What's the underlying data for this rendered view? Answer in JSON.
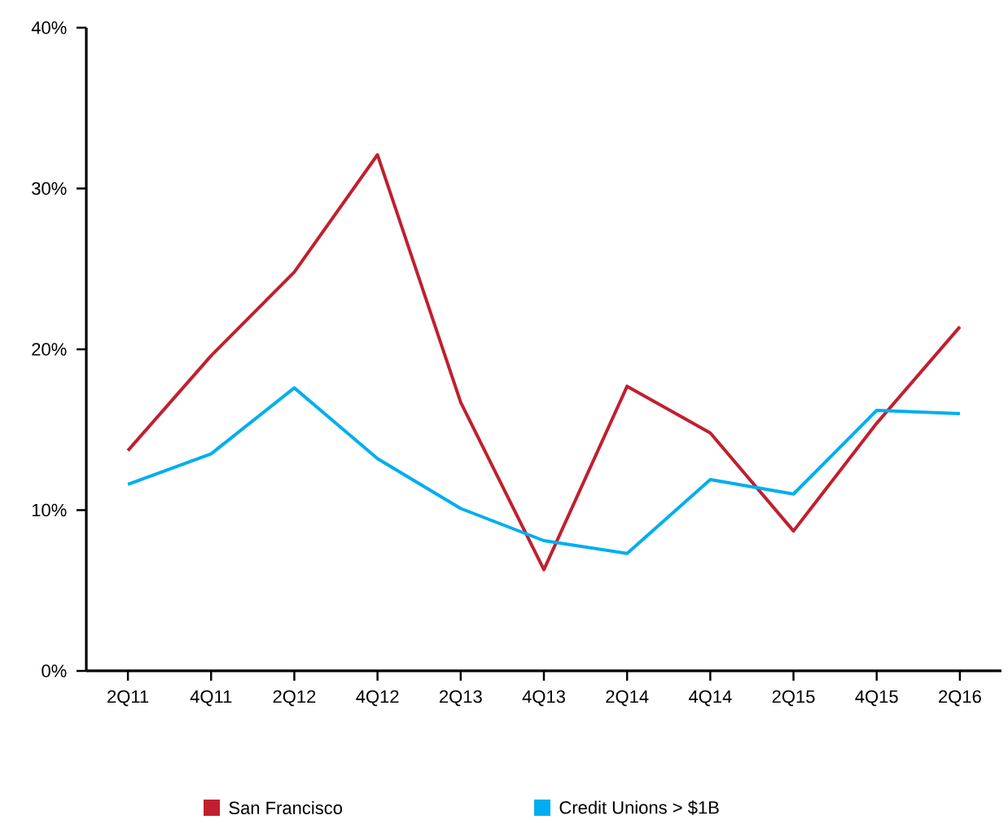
{
  "chart_data": {
    "type": "line",
    "categories": [
      "2Q11",
      "4Q11",
      "2Q12",
      "4Q12",
      "2Q13",
      "4Q13",
      "2Q14",
      "4Q14",
      "2Q15",
      "4Q15",
      "2Q16"
    ],
    "series": [
      {
        "name": "San Francisco",
        "color": "#c0202e",
        "values": [
          13.7,
          19.6,
          24.8,
          32.1,
          16.7,
          6.3,
          17.7,
          14.8,
          8.7,
          15.4,
          21.4
        ]
      },
      {
        "name": "Credit Unions > $1B",
        "color": "#00aeef",
        "values": [
          11.6,
          13.5,
          17.6,
          13.2,
          10.1,
          8.1,
          7.3,
          11.9,
          11.0,
          16.2,
          16.0
        ]
      }
    ],
    "ylim": [
      0,
      40
    ],
    "yticks": [
      {
        "value": 0,
        "label": "0%"
      },
      {
        "value": 10,
        "label": "10%"
      },
      {
        "value": 20,
        "label": "20%"
      },
      {
        "value": 30,
        "label": "30%"
      },
      {
        "value": 40,
        "label": "40%"
      }
    ],
    "legend": "bottom"
  }
}
